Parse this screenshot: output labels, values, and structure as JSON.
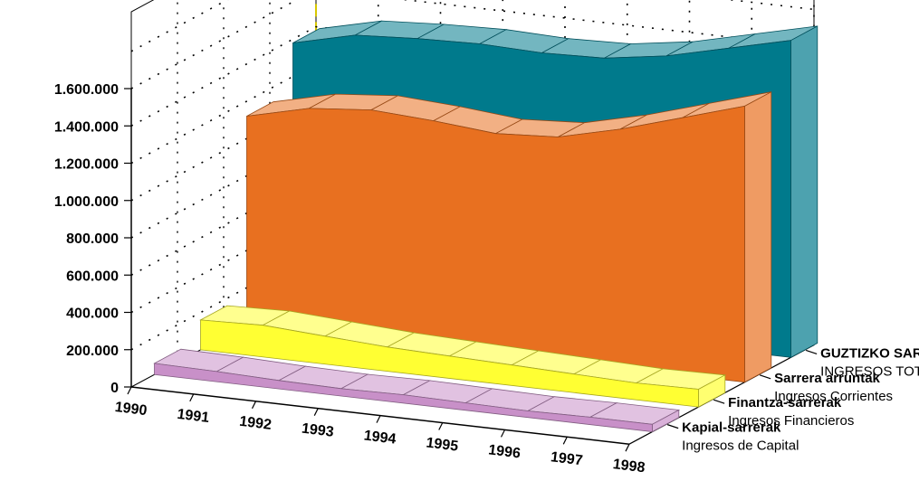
{
  "chart_data": {
    "type": "area",
    "view": "3d",
    "categories": [
      "1990",
      "1991",
      "1992",
      "1993",
      "1994",
      "1995",
      "1996",
      "1997",
      "1998"
    ],
    "ylim": [
      0,
      1600000
    ],
    "y_ticks": [
      "0",
      "200.000",
      "400.000",
      "600.000",
      "800.000",
      "1.000.000",
      "1.200.000",
      "1.400.000",
      "1.600.000"
    ],
    "grid": true,
    "legend_position": "right",
    "series": [
      {
        "name": "Kapial-sarrerak",
        "name_es": "Ingresos de Capital",
        "color": "#c890c8",
        "values": [
          60000,
          55000,
          45000,
          40000,
          45000,
          40000,
          35000,
          40000,
          40000
        ]
      },
      {
        "name": "Finantza-sarrerak",
        "name_es": "Ingresos Financieros",
        "color": "#ffff33",
        "values": [
          160000,
          170000,
          150000,
          130000,
          120000,
          110000,
          100000,
          90000,
          95000
        ]
      },
      {
        "name": "Sarrera arruntak",
        "name_es": "Ingresos Corrientes",
        "color": "#e87020",
        "values": [
          1120000,
          1200000,
          1230000,
          1210000,
          1180000,
          1200000,
          1280000,
          1380000,
          1480000
        ]
      },
      {
        "name": "GUZTIZKO SARRERAK",
        "name_es": "INGRESOS  TOTALES",
        "color": "#007a8c",
        "values": [
          1380000,
          1460000,
          1480000,
          1490000,
          1480000,
          1490000,
          1540000,
          1620000,
          1700000
        ]
      }
    ]
  }
}
